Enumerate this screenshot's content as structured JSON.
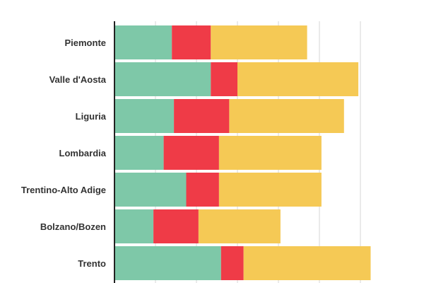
{
  "chart_data": {
    "type": "bar",
    "orientation": "horizontal",
    "stacked": true,
    "categories": [
      "Piemonte",
      "Valle d'Aosta",
      "Liguria",
      "Lombardia",
      "Trentino-Alto Adige",
      "Bolzano/Bozen",
      "Trento"
    ],
    "series": [
      {
        "color": "#7ec8a8",
        "values": [
          28,
          47,
          29,
          24,
          35,
          19,
          52
        ]
      },
      {
        "color": "#ef3b47",
        "values": [
          19,
          13,
          27,
          27,
          16,
          22,
          11
        ]
      },
      {
        "color": "#f5c955",
        "values": [
          47,
          59,
          56,
          50,
          50,
          40,
          62
        ]
      }
    ],
    "xlim": [
      0,
      125
    ],
    "grid": true,
    "legend": "none",
    "title": "",
    "xlabel": "",
    "ylabel": ""
  }
}
